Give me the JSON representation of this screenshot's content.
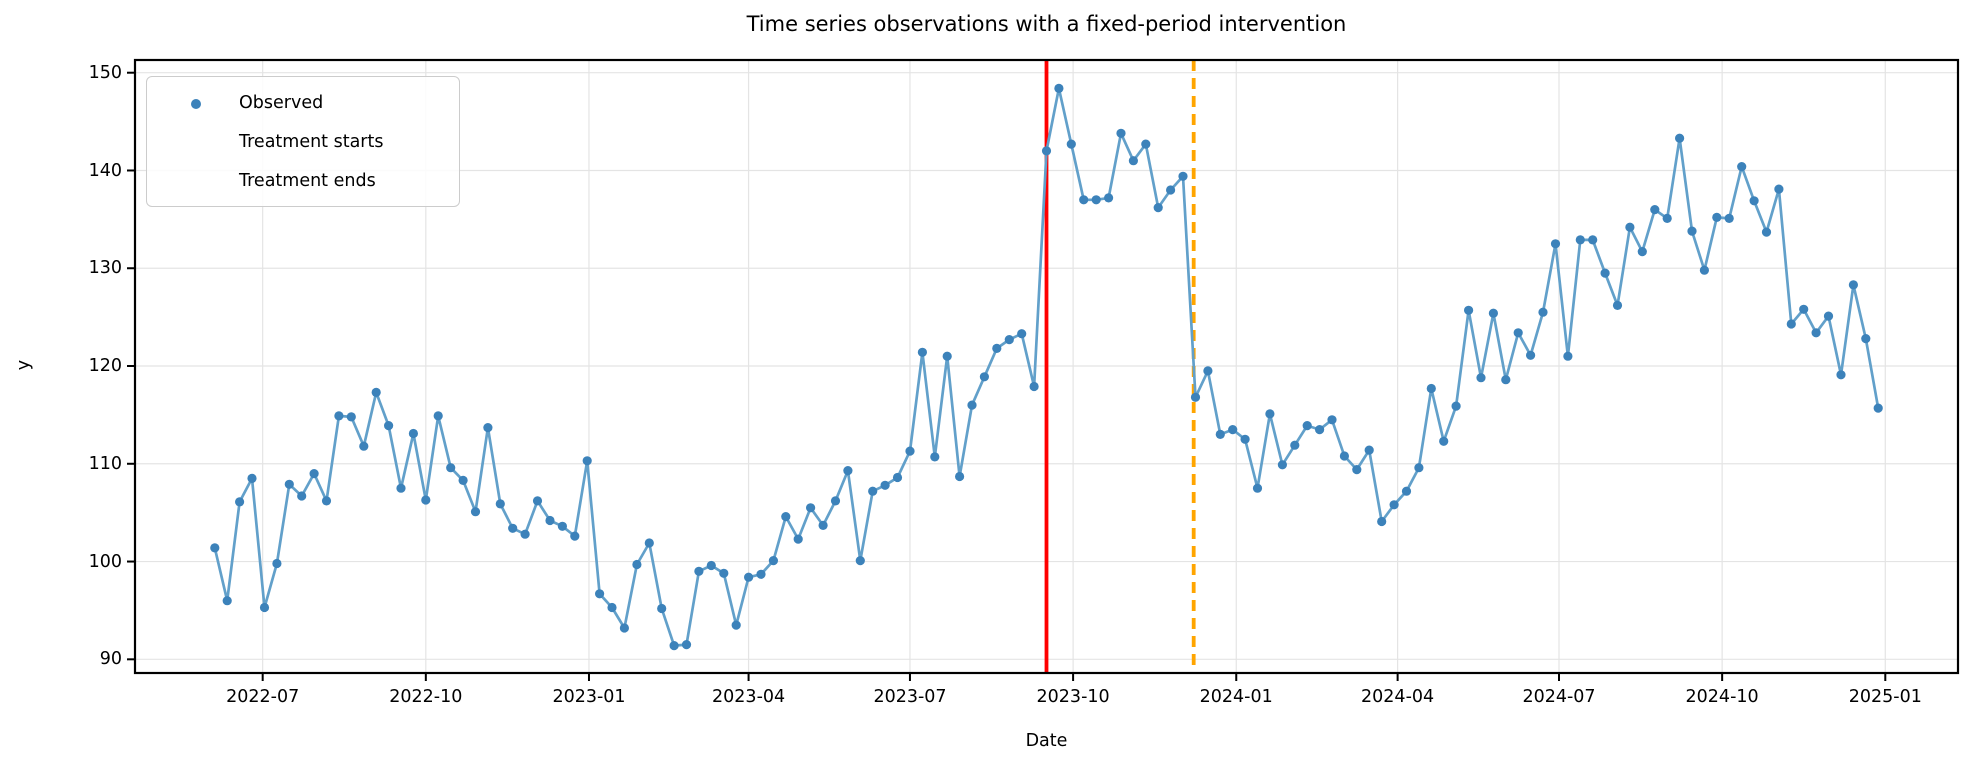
{
  "figure": {
    "title": "Time series observations with a fixed-period intervention",
    "xlabel": "Date",
    "ylabel": "y",
    "background": "#ffffff"
  },
  "legend": {
    "position": "upper left",
    "items": [
      {
        "label": "Observed",
        "type": "line-with-marker",
        "color": "#62a0ca",
        "marker_color": "#3c82ba"
      },
      {
        "label": "Treatment starts",
        "type": "solid-line",
        "color": "#ff0000"
      },
      {
        "label": "Treatment ends",
        "type": "dashed-line",
        "color": "#ffa500"
      }
    ]
  },
  "chart_data": {
    "type": "line",
    "title": "Time series observations with a fixed-period intervention",
    "xlabel": "Date",
    "ylabel": "y",
    "grid": true,
    "legend_position": "upper left",
    "xlim": [
      "2022-04-20",
      "2025-02-11"
    ],
    "ylim": [
      88.6,
      151.3
    ],
    "x_ticks": [
      "2022-07",
      "2022-10",
      "2023-01",
      "2023-04",
      "2023-07",
      "2023-10",
      "2024-01",
      "2024-04",
      "2024-07",
      "2024-10",
      "2025-01"
    ],
    "y_ticks": [
      90,
      100,
      110,
      120,
      130,
      140,
      150
    ],
    "series": [
      {
        "name": "Observed",
        "start_date": "2022-06-04",
        "frequency": "weekly",
        "line_color": "#62a0ca",
        "marker_color": "#3c82ba",
        "values": [
          101.4,
          96.0,
          106.1,
          108.5,
          95.3,
          99.8,
          107.9,
          106.7,
          109.0,
          106.2,
          114.9,
          114.8,
          111.8,
          117.3,
          113.9,
          107.5,
          113.1,
          106.3,
          114.9,
          109.6,
          108.3,
          105.1,
          113.7,
          105.9,
          103.4,
          102.8,
          106.2,
          104.2,
          103.6,
          102.6,
          110.3,
          96.7,
          95.3,
          93.2,
          99.7,
          101.9,
          95.2,
          91.4,
          91.5,
          99.0,
          99.6,
          98.8,
          93.5,
          98.4,
          98.7,
          100.1,
          104.6,
          102.3,
          105.5,
          103.7,
          106.2,
          109.3,
          100.1,
          107.2,
          107.8,
          108.6,
          111.3,
          121.4,
          110.7,
          121.0,
          108.7,
          116.0,
          118.9,
          121.8,
          122.7,
          123.3,
          117.9,
          142.0,
          148.4,
          142.7,
          137.0,
          137.0,
          137.2,
          143.8,
          141.0,
          142.7,
          136.2,
          138.0,
          139.4,
          116.8,
          119.5,
          113.0,
          113.5,
          112.5,
          107.5,
          115.1,
          109.9,
          111.9,
          113.9,
          113.5,
          114.5,
          110.8,
          109.4,
          111.4,
          104.1,
          105.8,
          107.2,
          109.6,
          117.7,
          112.3,
          115.9,
          125.7,
          118.8,
          125.4,
          118.6,
          123.4,
          121.1,
          125.5,
          132.5,
          121.0,
          132.9,
          132.9,
          129.5,
          126.2,
          134.2,
          131.7,
          136.0,
          135.1,
          143.3,
          133.8,
          129.8,
          135.2,
          135.1,
          140.4,
          136.9,
          133.7,
          138.1,
          124.3,
          125.8,
          123.4,
          125.1,
          119.1,
          128.3,
          122.8,
          115.7
        ]
      }
    ],
    "vlines": [
      {
        "name": "Treatment starts",
        "date": "2023-09-16",
        "style": "solid",
        "color": "#ff0000"
      },
      {
        "name": "Treatment ends",
        "date": "2023-12-08",
        "style": "dashed",
        "color": "#ffa500"
      }
    ],
    "styles": {
      "grid_color": "#e4e4e4",
      "spine_color": "#000000",
      "tick_length": 8
    }
  }
}
